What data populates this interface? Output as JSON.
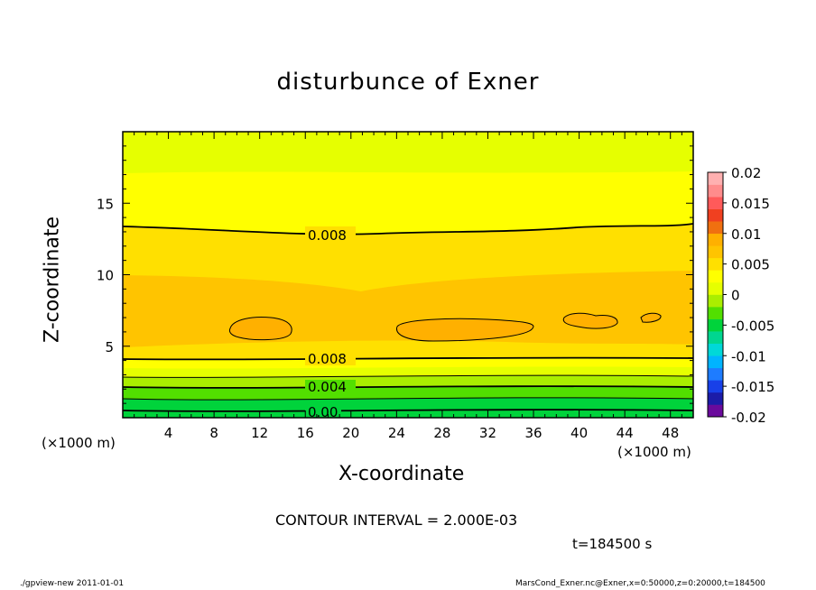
{
  "chart_data": {
    "type": "contour",
    "title": "disturbunce of Exner",
    "xlabel": "X-coordinate",
    "ylabel": "Z-coordinate",
    "x_unit_left": "(×1000 m)",
    "x_unit_right": "(×1000 m)",
    "xlim": [
      0,
      50
    ],
    "ylim": [
      0,
      20
    ],
    "x_ticks": [
      4,
      8,
      12,
      16,
      20,
      24,
      28,
      32,
      36,
      40,
      44,
      48
    ],
    "y_ticks": [
      5,
      10,
      15
    ],
    "contour_interval": "CONTOUR INTERVAL = 2.000E-03",
    "time_label": "t=184500 s",
    "colorbar": {
      "labels": [
        "0.02",
        "0.015",
        "0.01",
        "0.005",
        "0",
        "-0.005",
        "-0.01",
        "-0.015",
        "-0.02"
      ],
      "range": [
        -0.02,
        0.02
      ],
      "colors": [
        "#6a0a9c",
        "#1c1ca8",
        "#1840e8",
        "#1e7cff",
        "#00b4ff",
        "#00d8d8",
        "#00d690",
        "#00d33b",
        "#52df00",
        "#aaee00",
        "#e6ff00",
        "#ffff00",
        "#ffe000",
        "#ffc400",
        "#ffb000",
        "#f07010",
        "#f04020",
        "#ff5a5a",
        "#ff8c8c",
        "#ffb0b0"
      ]
    },
    "contour_labels": [
      "0.008",
      "0.008",
      "0.004",
      "0.00"
    ]
  },
  "footer": {
    "left": "./gpview-new   2011-01-01",
    "right": "MarsCond_Exner.nc@Exner,x=0:50000,z=0:20000,t=184500"
  }
}
